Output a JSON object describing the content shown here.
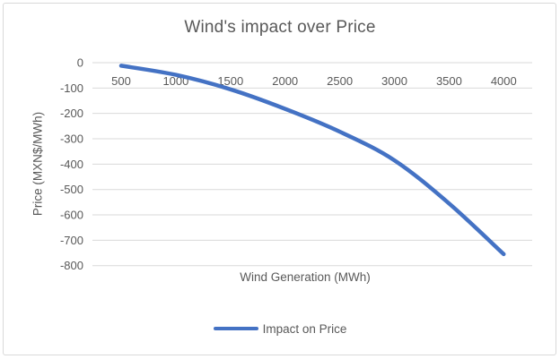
{
  "chart_data": {
    "type": "line",
    "title": "Wind's impact over Price",
    "xlabel": "Wind Generation (MWh)",
    "ylabel": "Price (MXN$/MWh)",
    "legend_position": "bottom",
    "x": [
      500,
      1000,
      1500,
      2000,
      2500,
      3000,
      3500,
      4000
    ],
    "series": [
      {
        "name": "Impact on Price",
        "values": [
          -12,
          -48,
          -105,
          -182,
          -272,
          -385,
          -555,
          -755
        ]
      }
    ],
    "xticks": [
      500,
      1000,
      1500,
      2000,
      2500,
      3000,
      3500,
      4000
    ],
    "yticks": [
      0,
      -100,
      -200,
      -300,
      -400,
      -500,
      -600,
      -700,
      -800
    ],
    "ylim": [
      -800,
      0
    ],
    "grid": "horizontal",
    "smooth": true,
    "colors": {
      "line": "#4472C4",
      "gridline": "#D9D9D9",
      "text": "#595959",
      "border": "#D9D9D9"
    }
  }
}
